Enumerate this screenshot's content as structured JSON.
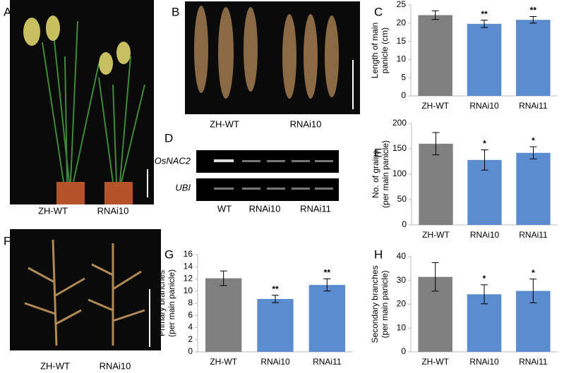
{
  "chart_data": [
    {
      "type": "bar",
      "panel": "C",
      "ylabel": [
        "Length of main",
        "panicle (cm)"
      ],
      "categories": [
        "ZH-WT",
        "RNAi10",
        "RNAi11"
      ],
      "values": [
        22.2,
        19.8,
        20.9
      ],
      "errors": [
        1.2,
        1.0,
        0.9
      ],
      "significance": [
        null,
        "**",
        "**"
      ],
      "colors": [
        "#808080",
        "#5b8ccf",
        "#5b8ccf"
      ],
      "ylim": [
        0,
        25
      ],
      "yticks": [
        0,
        5,
        10,
        15,
        20,
        25
      ]
    },
    {
      "type": "bar",
      "panel": "E",
      "ylabel": [
        "No. of grains",
        "(per main panicle)"
      ],
      "categories": [
        "ZH-WT",
        "RNAi10",
        "RNAi11"
      ],
      "values": [
        160,
        128,
        142
      ],
      "errors": [
        22,
        20,
        12
      ],
      "significance": [
        null,
        "*",
        "*"
      ],
      "colors": [
        "#808080",
        "#5b8ccf",
        "#5b8ccf"
      ],
      "ylim": [
        0,
        200
      ],
      "yticks": [
        0,
        50,
        100,
        150,
        200
      ]
    },
    {
      "type": "bar",
      "panel": "G",
      "ylabel": [
        "Primary branches",
        "(per main panicle)"
      ],
      "categories": [
        "ZH-WT",
        "RNAi10",
        "RNAi11"
      ],
      "values": [
        12.1,
        8.7,
        11.0
      ],
      "errors": [
        1.2,
        0.6,
        1.0
      ],
      "significance": [
        null,
        "**",
        "**"
      ],
      "colors": [
        "#808080",
        "#5b8ccf",
        "#5b8ccf"
      ],
      "ylim": [
        0,
        16
      ],
      "yticks": [
        0,
        2,
        4,
        6,
        8,
        10,
        12,
        14,
        16
      ]
    },
    {
      "type": "bar",
      "panel": "H",
      "ylabel": [
        "Secondary branches",
        "(per main panicle)"
      ],
      "categories": [
        "ZH-WT",
        "RNAi10",
        "RNAi11"
      ],
      "values": [
        31.5,
        24.2,
        25.6
      ],
      "errors": [
        6,
        4,
        5
      ],
      "significance": [
        null,
        "*",
        "*"
      ],
      "colors": [
        "#808080",
        "#5b8ccf",
        "#5b8ccf"
      ],
      "ylim": [
        0,
        40
      ],
      "yticks": [
        0,
        10,
        20,
        30,
        40
      ]
    }
  ],
  "photos": {
    "A": {
      "letter": "A",
      "labels": [
        "ZH-WT",
        "RNAi10"
      ]
    },
    "B": {
      "letter": "B",
      "labels": [
        "ZH-WT",
        "RNAi10"
      ]
    },
    "D": {
      "letter": "D",
      "rows": [
        "OsNAC2",
        "UBI"
      ],
      "lanes": [
        "WT",
        "RNAi10",
        "RNAi11"
      ]
    },
    "F": {
      "letter": "F",
      "labels": [
        "ZH-WT",
        "RNAi10"
      ]
    }
  }
}
